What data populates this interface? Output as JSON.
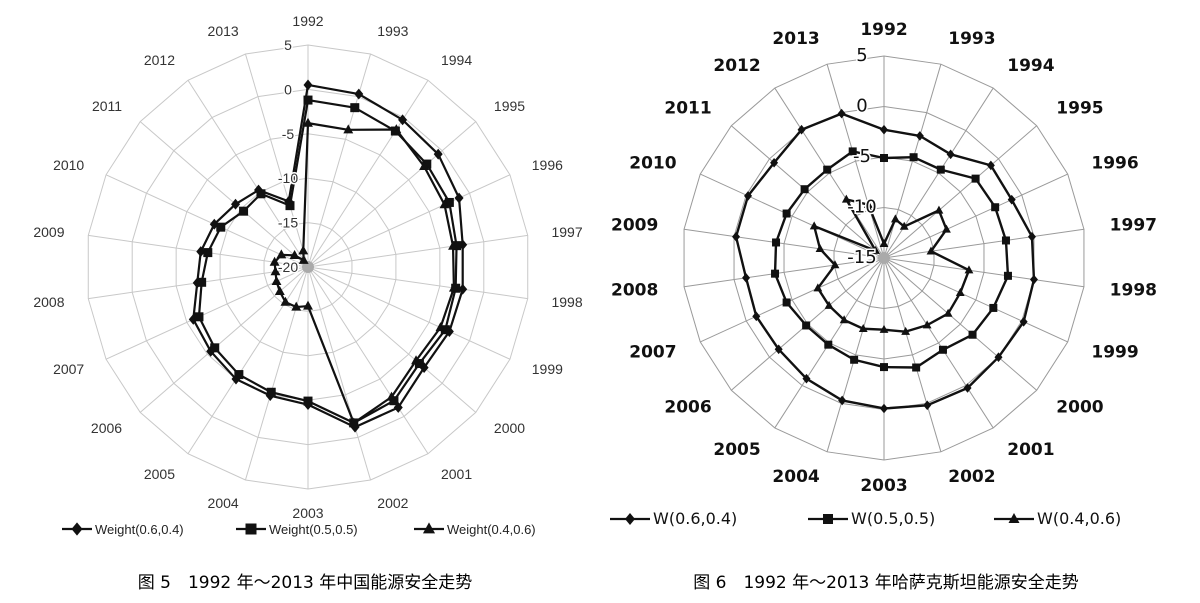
{
  "chart_data": [
    {
      "type": "radar",
      "caption": "图 5　1992 年～2013 年中国能源安全走势",
      "categories": [
        "1992",
        "1993",
        "1994",
        "1995",
        "1996",
        "1997",
        "1998",
        "1999",
        "2000",
        "2001",
        "2002",
        "2003",
        "2004",
        "2005",
        "2006",
        "2007",
        "2008",
        "2009",
        "2010",
        "2011",
        "2012",
        "2013"
      ],
      "radial_ticks": [
        "-20",
        "-15",
        "-10",
        "-5",
        "0",
        "5"
      ],
      "rlim": [
        -20,
        5
      ],
      "grid": true,
      "legend_position": "bottom",
      "series": [
        {
          "name": "Weight(0.6,0.4)",
          "marker": "diamond",
          "values": [
            0.5,
            0.3,
            -0.3,
            -0.6,
            -1.3,
            -2.4,
            -2.4,
            -2.5,
            -2.7,
            -1.2,
            -1.2,
            -4.5,
            -4.9,
            -5.0,
            -5.5,
            -5.8,
            -7.4,
            -7.8,
            -8.4,
            -9.2,
            -9.7,
            -12.3
          ]
        },
        {
          "name": "Weight(0.5,0.5)",
          "marker": "square",
          "values": [
            -1.2,
            -1.3,
            -1.8,
            -2.3,
            -2.5,
            -3.1,
            -3.2,
            -3.0,
            -3.4,
            -2.1,
            -1.7,
            -4.9,
            -5.3,
            -5.6,
            -6.1,
            -6.5,
            -7.9,
            -8.6,
            -9.2,
            -10.4,
            -10.2,
            -12.8
          ]
        },
        {
          "name": "Weight(0.4,0.6)",
          "marker": "triangle",
          "values": [
            -3.8,
            -3.9,
            -1.6,
            -2.7,
            -3.1,
            -3.5,
            -3.4,
            -3.6,
            -3.9,
            -2.6,
            -1.7,
            -15.6,
            -15.3,
            -15.3,
            -15.8,
            -16.1,
            -16.3,
            -16.2,
            -16.7,
            -18.0,
            -19.1,
            -18.1
          ]
        }
      ]
    },
    {
      "type": "radar",
      "caption": "图 6　1992 年～2013 年哈萨克斯坦能源安全走势",
      "categories": [
        "1992",
        "1993",
        "1994",
        "1995",
        "1996",
        "1997",
        "1998",
        "1999",
        "2000",
        "2001",
        "2002",
        "2003",
        "2004",
        "2005",
        "2006",
        "2007",
        "2008",
        "2009",
        "2010",
        "2011",
        "2012",
        "2013"
      ],
      "radial_ticks": [
        "-15",
        "-10",
        "-5",
        "0",
        "5"
      ],
      "rlim": [
        -15,
        5
      ],
      "grid": true,
      "legend_position": "bottom",
      "series": [
        {
          "name": "W(0.6,0.4)",
          "marker": "diamond",
          "values": [
            -2.3,
            -2.4,
            -2.8,
            -1.0,
            -1.1,
            -0.2,
            0.0,
            0.2,
            0.0,
            0.3,
            0.2,
            -0.1,
            -0.3,
            -0.8,
            -1.2,
            -1.1,
            -1.2,
            -0.2,
            -0.2,
            -0.6,
            0.1,
            -0.1
          ]
        },
        {
          "name": "W(0.5,0.5)",
          "marker": "square",
          "values": [
            -5.1,
            -4.6,
            -4.6,
            -3.0,
            -2.9,
            -2.8,
            -2.6,
            -3.1,
            -3.4,
            -4.2,
            -3.7,
            -4.2,
            -4.5,
            -4.8,
            -4.8,
            -4.4,
            -4.1,
            -4.2,
            -4.4,
            -4.6,
            -4.6,
            -4.0
          ]
        },
        {
          "name": "W(0.4,0.6)",
          "marker": "triangle",
          "values": [
            -13.6,
            -11.0,
            -11.3,
            -7.8,
            -8.2,
            -10.3,
            -6.5,
            -6.7,
            -6.6,
            -7.1,
            -7.4,
            -7.9,
            -7.7,
            -7.7,
            -7.8,
            -7.8,
            -10.1,
            -8.6,
            -7.4,
            -13.9,
            -8.1,
            -9.5
          ]
        }
      ]
    }
  ]
}
